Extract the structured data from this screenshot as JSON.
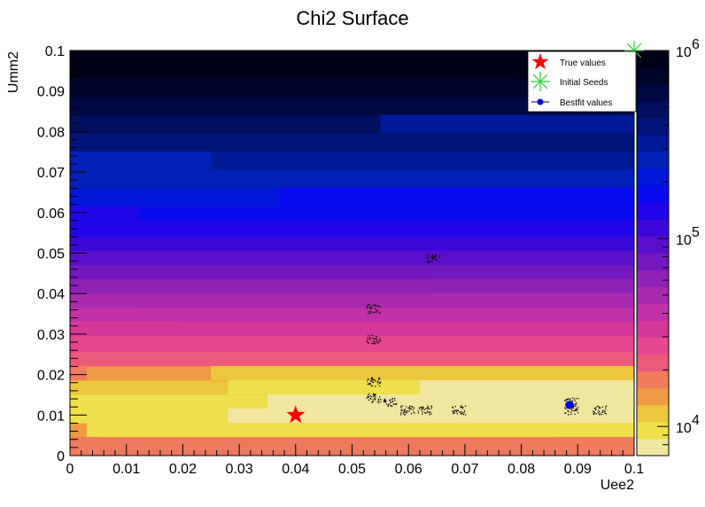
{
  "chart_data": {
    "type": "heatmap",
    "title": "Chi2 Surface",
    "xlabel": "Uee2",
    "ylabel": "Umm2",
    "xlim": [
      0,
      0.1
    ],
    "ylim": [
      0,
      0.1
    ],
    "x_ticks": [
      "0",
      "0.01",
      "0.02",
      "0.03",
      "0.04",
      "0.05",
      "0.06",
      "0.07",
      "0.08",
      "0.09",
      "0.1"
    ],
    "y_ticks": [
      "0",
      "0.01",
      "0.02",
      "0.03",
      "0.04",
      "0.05",
      "0.06",
      "0.07",
      "0.08",
      "0.09",
      "0.1"
    ],
    "colorbar": {
      "scale": "log",
      "range": [
        7000,
        1000000
      ],
      "tick_labels": [
        {
          "base": "10",
          "exp": "4",
          "value": 10000
        },
        {
          "base": "10",
          "exp": "5",
          "value": 100000
        },
        {
          "base": "10",
          "exp": "6",
          "value": 1000000
        }
      ]
    },
    "palette": [
      "#f0e6a0",
      "#ede04a",
      "#edc63c",
      "#ef9b45",
      "#ef7c5c",
      "#ec5a7a",
      "#e6468e",
      "#d63899",
      "#c030a6",
      "#a82aae",
      "#8f22b6",
      "#7418c0",
      "#5a0fcc",
      "#3c08da",
      "#1f06e8",
      "#0a0af0",
      "#0016d8",
      "#0020b8",
      "#001a98",
      "#00147a",
      "#000e5e",
      "#000944",
      "#00052c",
      "#000018"
    ],
    "level_bounds_y": [
      0.0,
      0.0046,
      0.0081,
      0.0116,
      0.0151,
      0.0186,
      0.0221,
      0.0256,
      0.0296,
      0.0331,
      0.0366,
      0.0401,
      0.0436,
      0.0471,
      0.0506,
      0.0541,
      0.0581,
      0.0616,
      0.0661,
      0.0706,
      0.0751,
      0.0796,
      0.0841,
      0.0886,
      0.0931,
      0.1
    ],
    "level_colors": [
      "#ec7a5c",
      "#ef9b45",
      "#ede04a",
      "#ede04a",
      "#edc63c",
      "#ef9b45",
      "#ec5a7a",
      "#e6468e",
      "#d63899",
      "#c030a6",
      "#a82aae",
      "#8f22b6",
      "#7418c0",
      "#5a0fcc",
      "#3c08da",
      "#1f06e8",
      "#0a0af0",
      "#0016d8",
      "#0020b8",
      "#001a98",
      "#00147a",
      "#000e5e",
      "#000944",
      "#00052c",
      "#000018"
    ],
    "highlight_regions": [
      {
        "x": [
          0.003,
          0.1
        ],
        "y": [
          0.0046,
          0.0081
        ],
        "color": "#ede04a"
      },
      {
        "x": [
          0.003,
          0.1
        ],
        "y": [
          0.0081,
          0.0116
        ],
        "color": "#ede04a"
      },
      {
        "x": [
          0.028,
          0.1
        ],
        "y": [
          0.0081,
          0.0116
        ],
        "color": "#f0e6a0"
      },
      {
        "x": [
          0.035,
          0.1
        ],
        "y": [
          0.0116,
          0.0151
        ],
        "color": "#f0e6a0"
      },
      {
        "x": [
          0.062,
          0.1
        ],
        "y": [
          0.0151,
          0.0186
        ],
        "color": "#f0e6a0"
      },
      {
        "x": [
          0.028,
          0.062
        ],
        "y": [
          0.0151,
          0.0186
        ],
        "color": "#ede04a"
      },
      {
        "x": [
          0.0,
          0.003
        ],
        "y": [
          0.0186,
          0.0221
        ],
        "color": "#ef7c5c"
      },
      {
        "x": [
          0.025,
          0.1
        ],
        "y": [
          0.0186,
          0.0221
        ],
        "color": "#edc63c"
      },
      {
        "x": [
          0.0,
          0.005
        ],
        "y": [
          0.0,
          0.0046
        ],
        "color": "#ef7c5c"
      },
      {
        "x": [
          0.086,
          0.1
        ],
        "y": [
          0.0,
          0.0046
        ],
        "color": "#ef7c5c"
      }
    ],
    "markers": [
      {
        "name": "True values",
        "type": "star",
        "x": 0.04,
        "y": 0.01,
        "color": "#ff0000"
      },
      {
        "name": "Initial Seeds",
        "type": "asterisk",
        "x": 0.1,
        "y": 0.1,
        "color": "#33cc33"
      },
      {
        "name": "Bestfit values",
        "type": "dot",
        "x": 0.0885,
        "y": 0.0125,
        "color": "#0000ff"
      }
    ],
    "legend": {
      "position": "top-right",
      "entries": [
        "True values",
        "Initial Seeds",
        "Bestfit values"
      ]
    },
    "grid": false
  }
}
